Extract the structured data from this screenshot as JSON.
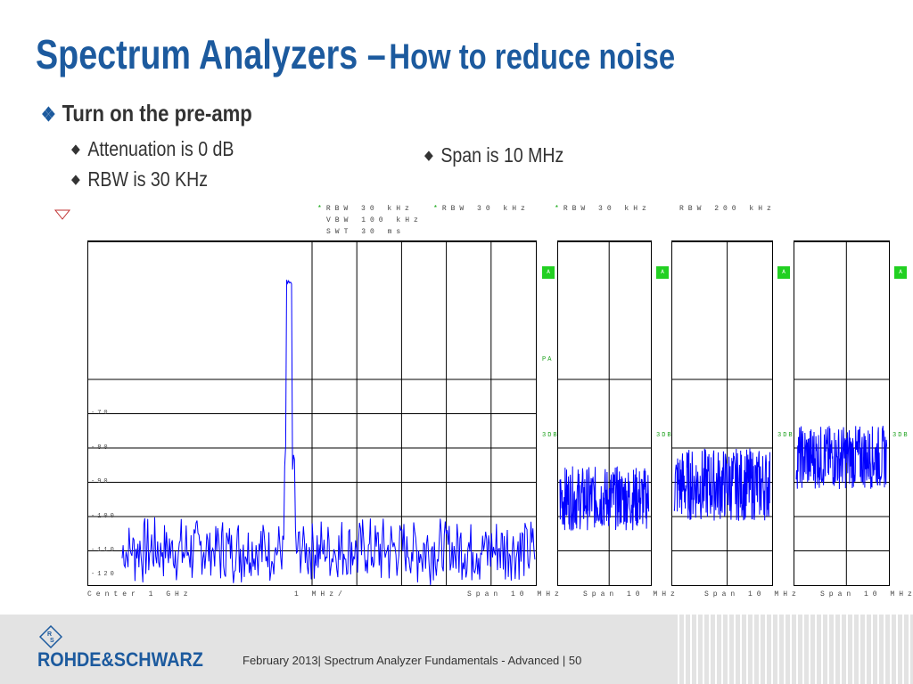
{
  "slide": {
    "title_main": "Spectrum Analyzers –",
    "title_sub": "How to reduce noise",
    "bullet_main": "Turn on the pre-amp",
    "sub_bullets": {
      "attenuation": "Attenuation is 0 dB",
      "rbw": "RBW is 30 KHz",
      "span": "Span is 10 MHz"
    }
  },
  "settings": {
    "main": {
      "rbw": "RBW  30 kHz",
      "vbw": "VBW  100 kHz",
      "swt": "SWT  30 ms"
    },
    "panel2": {
      "rbw": "RBW  30 kHz"
    },
    "panel3": {
      "rbw": "RBW  30 kHz"
    },
    "panel4": {
      "rbw": "RBW  200 kHz"
    },
    "marker": "*"
  },
  "main_plot": {
    "y_ticks": [
      "-70",
      "-80",
      "-90",
      "-100",
      "-110",
      "-120"
    ],
    "center": "Center  1 GHz",
    "per_div": "1 MHz/",
    "span": "Span  10 MHz",
    "trace_label": "A",
    "pa_label": "PA",
    "db_label": "3DB"
  },
  "panel2": {
    "span": "Span  10 MHz",
    "trace_label": "A",
    "db_label": "3DB"
  },
  "panel3": {
    "span": "Span  10 MHz",
    "trace_label": "A",
    "db_label": "3DB"
  },
  "panel4": {
    "span": "Span  10 MHz",
    "trace_label": "A",
    "db_label": "3DB"
  },
  "chart_data": [
    {
      "type": "line",
      "series": [
        {
          "values": [
            -116,
            -114,
            -113,
            -115,
            -114,
            -116,
            -113,
            -114,
            -115,
            -114,
            -113,
            -115,
            -114,
            -116,
            -114,
            -113,
            -115,
            -114,
            -113,
            -115,
            -114,
            -116,
            -114,
            -113,
            -115,
            -114,
            -113,
            -115,
            -114,
            -115,
            -113,
            -114,
            -114,
            -113,
            -115,
            -114,
            -113,
            -115,
            -114,
            -116,
            -114,
            -113,
            -115,
            -114,
            -113,
            -115,
            -114,
            -114,
            -113,
            -115
          ]
        }
      ],
      "peak": {
        "x": 0,
        "y": -60
      },
      "ylim": [
        -125,
        -50
      ],
      "grid": true
    },
    {
      "type": "line",
      "approx_level": -106,
      "grid": true
    },
    {
      "type": "line",
      "approx_level": -103,
      "grid": true
    },
    {
      "type": "line",
      "approx_level": -97,
      "grid": true
    }
  ],
  "colors": {
    "title": "#1c5a9e",
    "trace": "#0000ff",
    "flag": "#22d022",
    "footer": "#e3e3e3"
  },
  "footer": {
    "brand": "ROHDE&SCHWARZ",
    "text": "February 2013|  Spectrum Analyzer Fundamentals - Advanced  |  50",
    "logo_letters": "RS"
  }
}
